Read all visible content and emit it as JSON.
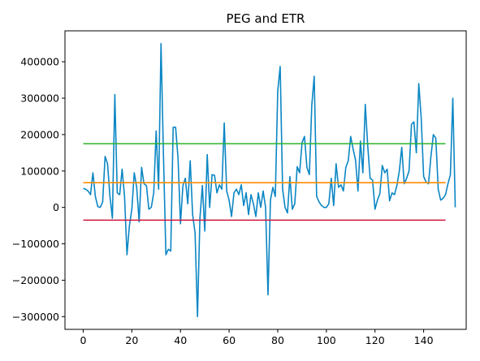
{
  "chart_data": {
    "type": "line",
    "title": "PEG and ETR",
    "xlabel": "",
    "ylabel": "",
    "xlim": [
      -7.5,
      157.5
    ],
    "ylim": [
      -335000,
      485000
    ],
    "x_ticks": [
      0,
      20,
      40,
      60,
      80,
      100,
      120,
      140
    ],
    "y_ticks": [
      -300000,
      -200000,
      -100000,
      0,
      100000,
      200000,
      300000,
      400000
    ],
    "x_tick_labels": [
      "0",
      "20",
      "40",
      "60",
      "80",
      "100",
      "120",
      "140"
    ],
    "y_tick_labels": [
      "−300000",
      "−200000",
      "−100000",
      "0",
      "100000",
      "200000",
      "300000",
      "400000"
    ],
    "grid": false,
    "series": [
      {
        "color": "#0b86c4",
        "kind": "line",
        "values": [
          52000,
          50000,
          45000,
          35000,
          95000,
          30000,
          2000,
          0,
          15000,
          140000,
          120000,
          30000,
          -30000,
          310000,
          40000,
          35000,
          105000,
          30000,
          -130000,
          -50000,
          -5000,
          95000,
          55000,
          -40000,
          110000,
          65000,
          60000,
          -5000,
          0,
          40000,
          210000,
          50000,
          450000,
          145000,
          -130000,
          -115000,
          -120000,
          220000,
          220000,
          135000,
          -45000,
          60000,
          80000,
          10000,
          128000,
          -20000,
          -70000,
          -300000,
          -30000,
          60000,
          -65000,
          145000,
          0,
          90000,
          88000,
          40000,
          62000,
          50000,
          232000,
          45000,
          20000,
          -25000,
          40000,
          50000,
          35000,
          62000,
          5000,
          40000,
          -20000,
          35000,
          10000,
          -25000,
          40000,
          0,
          45000,
          0,
          -240000,
          20000,
          55000,
          30000,
          320000,
          387000,
          50000,
          0,
          -15000,
          85000,
          -5000,
          10000,
          112000,
          95000,
          178000,
          195000,
          110000,
          90000,
          280000,
          360000,
          30000,
          15000,
          5000,
          0,
          0,
          10000,
          80000,
          5000,
          120000,
          55000,
          62000,
          45000,
          110000,
          128000,
          195000,
          160000,
          130000,
          45000,
          182000,
          95000,
          283000,
          170000,
          80000,
          75000,
          -5000,
          20000,
          38000,
          115000,
          95000,
          105000,
          18000,
          40000,
          35000,
          60000,
          100000,
          165000,
          65000,
          80000,
          100000,
          228000,
          235000,
          150000,
          340000,
          245000,
          85000,
          70000,
          65000,
          140000,
          200000,
          190000,
          50000,
          20000,
          25000,
          35000,
          65000,
          90000,
          300000,
          0
        ]
      },
      {
        "color": "#2ab52a",
        "kind": "hline",
        "y": 175000,
        "x_range": [
          0,
          149
        ]
      },
      {
        "color": "#ff8c00",
        "kind": "hline",
        "y": 68000,
        "x_range": [
          0,
          149
        ]
      },
      {
        "color": "#d0143c",
        "kind": "hline",
        "y": -35000,
        "x_range": [
          0,
          149
        ]
      }
    ]
  }
}
